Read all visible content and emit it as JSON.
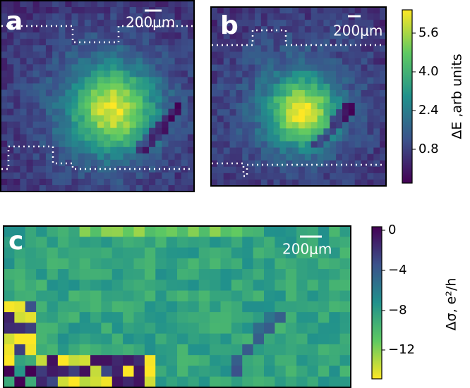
{
  "panels": [
    {
      "label": "a",
      "scale_bar": "200μm"
    },
    {
      "label": "b",
      "scale_bar": "200μm"
    },
    {
      "label": "c",
      "scale_bar": "200μm"
    }
  ],
  "colorbars": [
    {
      "label": "ΔE ,arb units",
      "ticks": [
        "5.6",
        "4.0",
        "2.4",
        "0.8"
      ]
    },
    {
      "label": "Δσ, e²/h",
      "ticks": [
        "0",
        "−4",
        "−8",
        "−12"
      ]
    }
  ]
}
